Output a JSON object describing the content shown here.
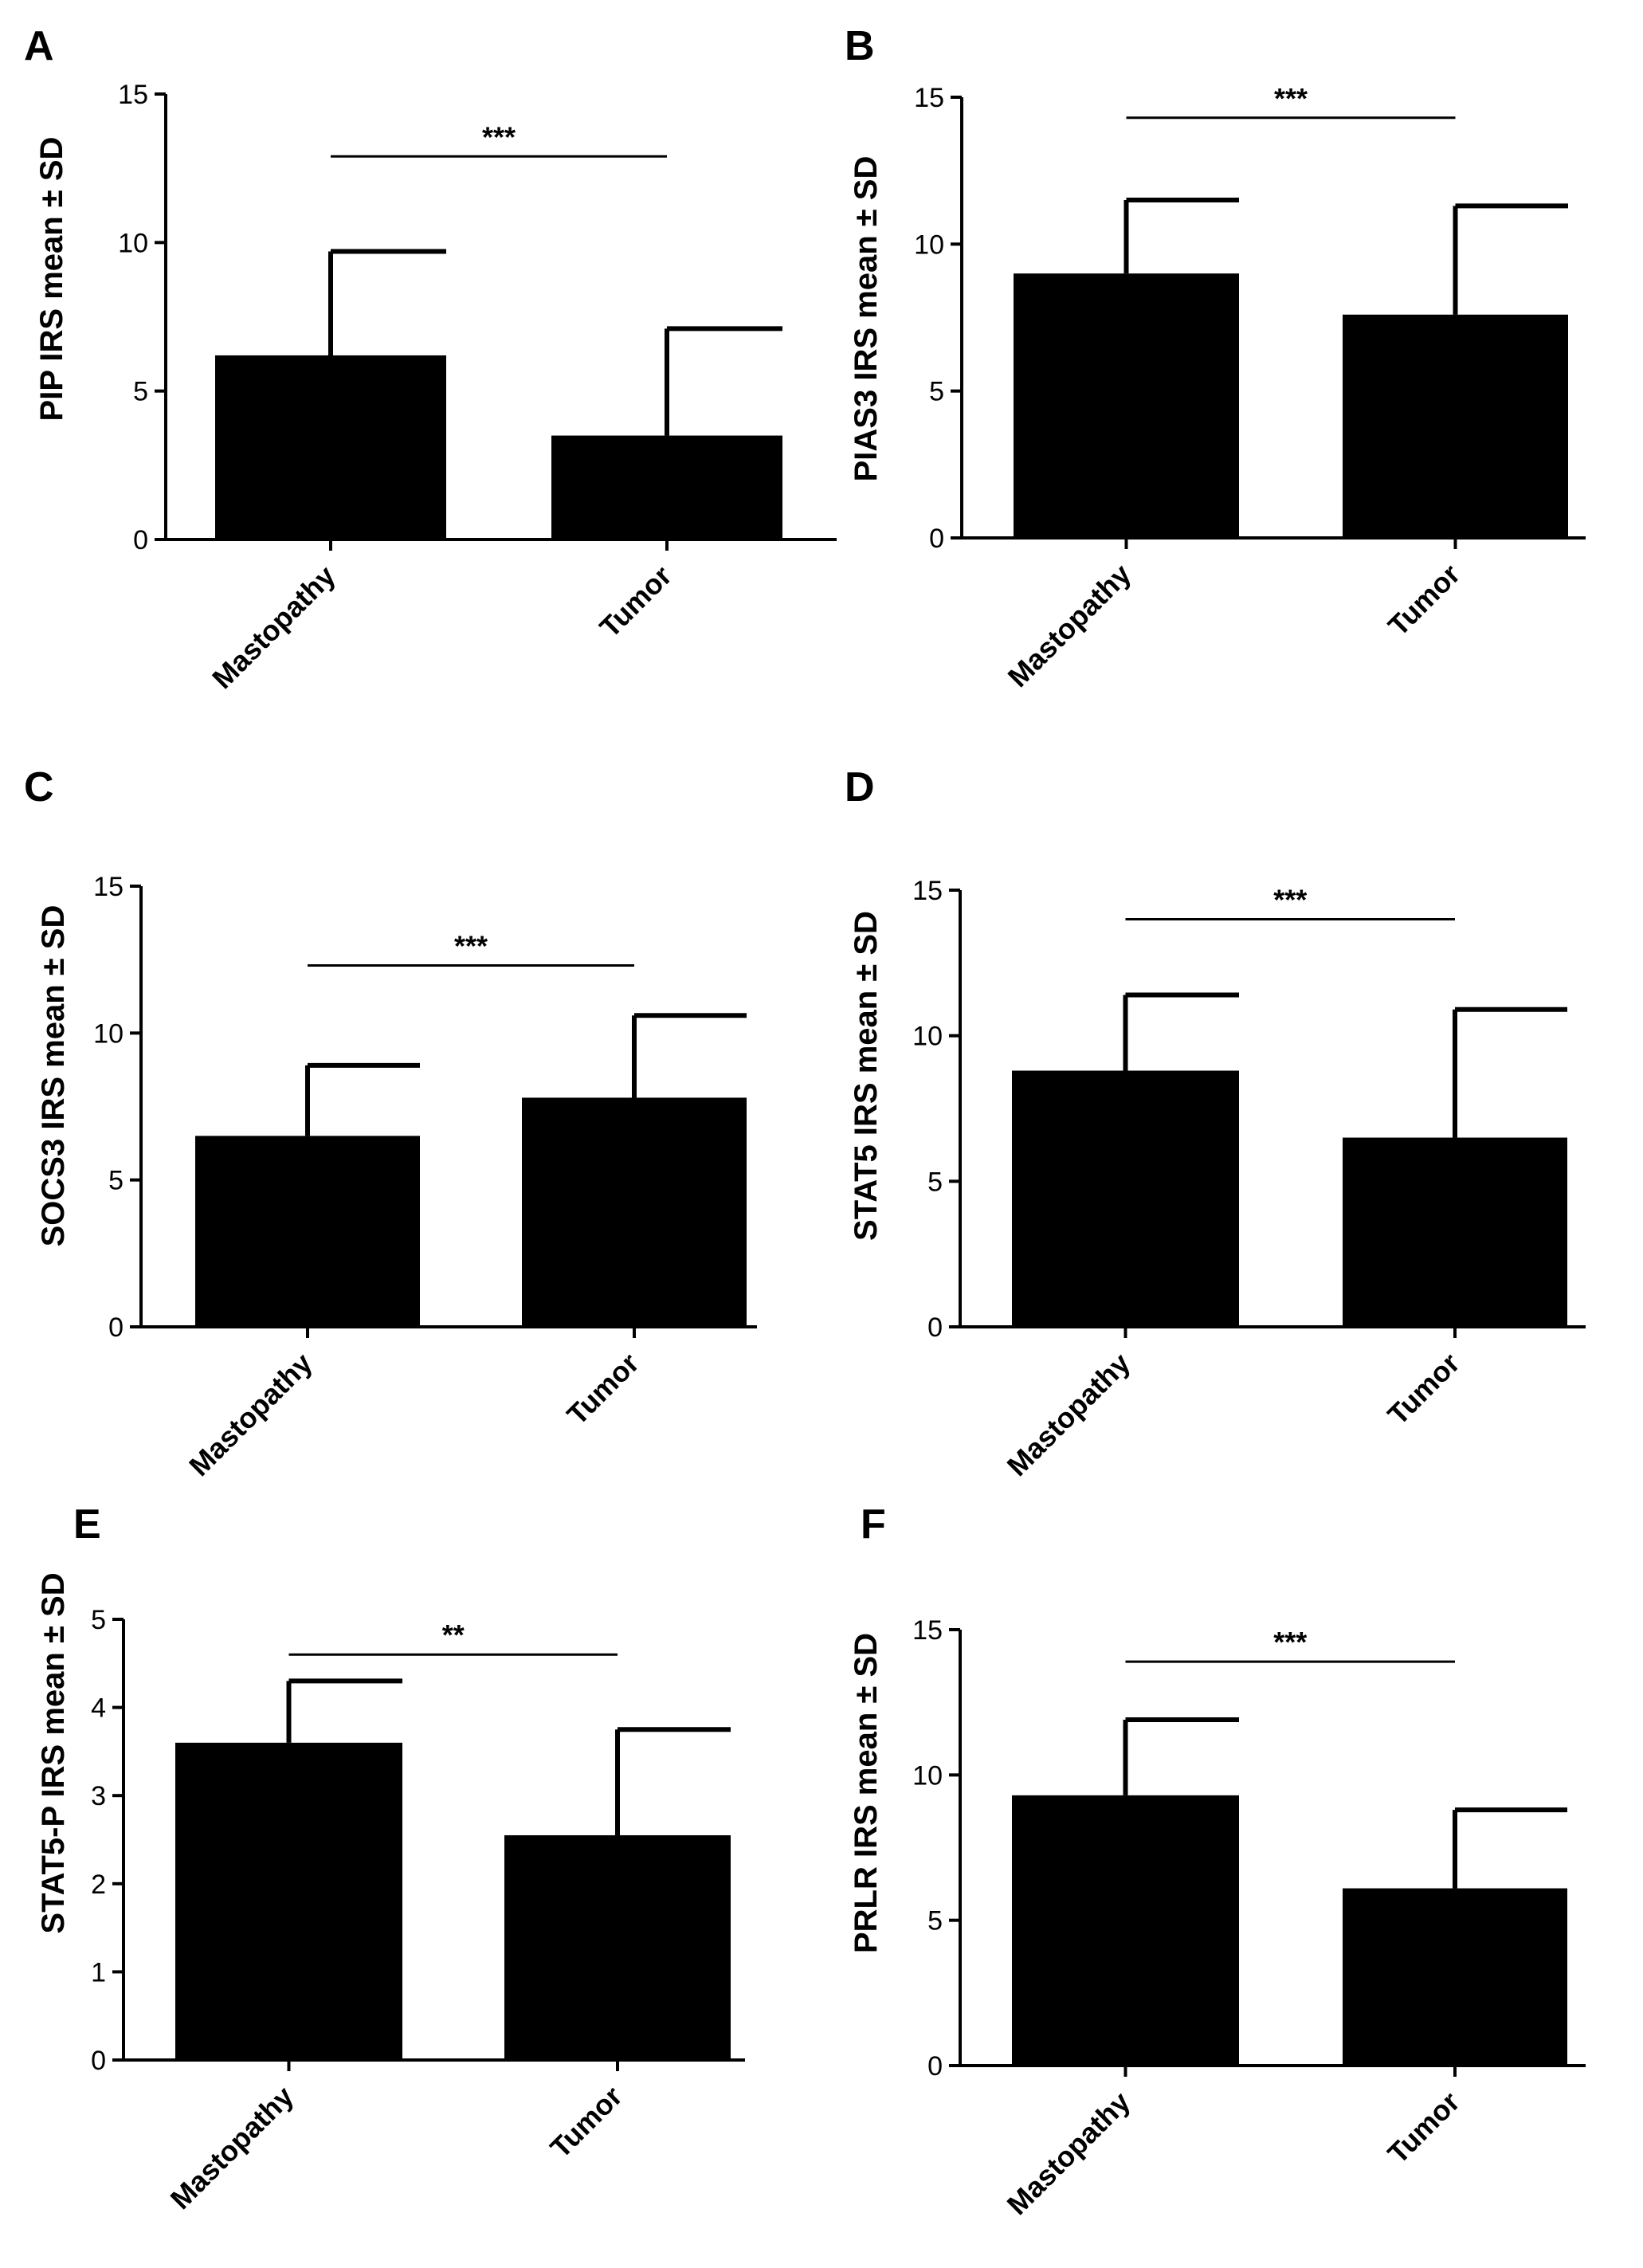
{
  "figure": {
    "title": ""
  },
  "chart_data": [
    {
      "panel": "A",
      "type": "bar",
      "categories": [
        "Mastopathy",
        "Tumor"
      ],
      "values": [
        6.2,
        3.5
      ],
      "errors": [
        3.5,
        3.6
      ],
      "ylabel": "PIP IRS mean ± SD",
      "ylim": [
        0,
        15
      ],
      "yticks": [
        0,
        5,
        10,
        15
      ],
      "significance": {
        "label": "***",
        "y": 12.9
      }
    },
    {
      "panel": "B",
      "type": "bar",
      "categories": [
        "Mastopathy",
        "Tumor"
      ],
      "values": [
        9.0,
        7.6
      ],
      "errors": [
        2.5,
        3.7
      ],
      "ylabel": "PIAS3 IRS mean ± SD",
      "ylim": [
        0,
        15
      ],
      "yticks": [
        0,
        5,
        10,
        15
      ],
      "significance": {
        "label": "***",
        "y": 14.3
      }
    },
    {
      "panel": "C",
      "type": "bar",
      "categories": [
        "Mastopathy",
        "Tumor"
      ],
      "values": [
        6.5,
        7.8
      ],
      "errors": [
        2.4,
        2.8
      ],
      "ylabel": "SOCS3 IRS mean ± SD",
      "ylim": [
        0,
        15
      ],
      "yticks": [
        0,
        5,
        10,
        15
      ],
      "significance": {
        "label": "***",
        "y": 12.3
      }
    },
    {
      "panel": "D",
      "type": "bar",
      "categories": [
        "Mastopathy",
        "Tumor"
      ],
      "values": [
        8.8,
        6.5
      ],
      "errors": [
        2.6,
        4.4
      ],
      "ylabel": "STAT5 IRS mean ± SD",
      "ylim": [
        0,
        15
      ],
      "yticks": [
        0,
        5,
        10,
        15
      ],
      "significance": {
        "label": "***",
        "y": 14.0
      }
    },
    {
      "panel": "E",
      "type": "bar",
      "categories": [
        "Mastopathy",
        "Tumor"
      ],
      "values": [
        3.6,
        2.55
      ],
      "errors": [
        0.7,
        1.2
      ],
      "ylabel": "STAT5-P IRS mean ± SD",
      "ylim": [
        0,
        5
      ],
      "yticks": [
        0,
        1,
        2,
        3,
        4,
        5
      ],
      "significance": {
        "label": "**",
        "y": 4.6
      }
    },
    {
      "panel": "F",
      "type": "bar",
      "categories": [
        "Mastopathy",
        "Tumor"
      ],
      "values": [
        9.3,
        6.1
      ],
      "errors": [
        2.6,
        2.7
      ],
      "ylabel": "PRLR IRS mean ± SD",
      "ylim": [
        0,
        15
      ],
      "yticks": [
        0,
        5,
        10,
        15
      ],
      "significance": {
        "label": "***",
        "y": 13.9
      }
    }
  ]
}
